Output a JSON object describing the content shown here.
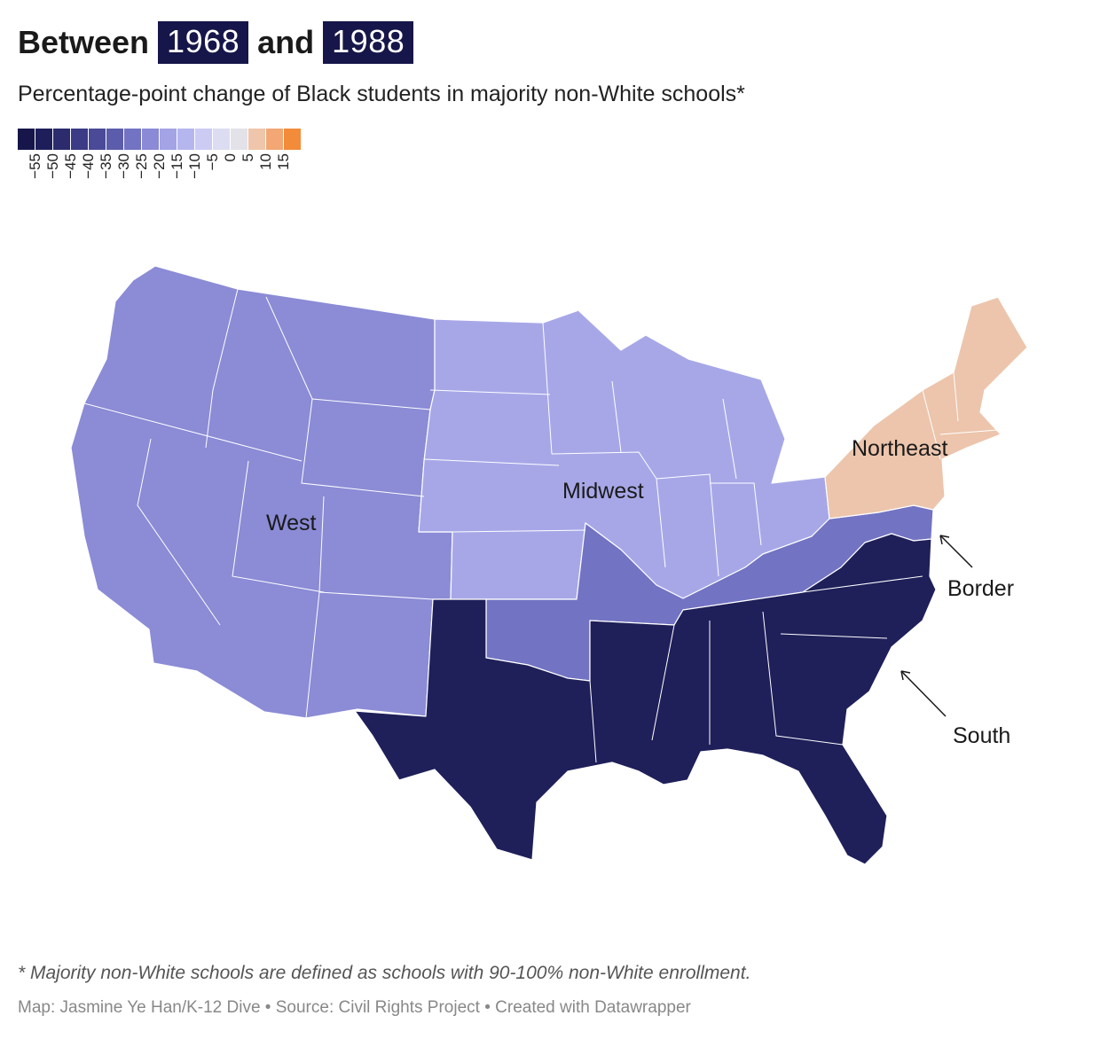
{
  "title": {
    "prefix": "Between",
    "year1": "1968",
    "middle": "and",
    "year2": "1988"
  },
  "subtitle": "Percentage-point change of Black students in majority non-White schools*",
  "legend": {
    "colors": [
      "#16164a",
      "#1e1e5a",
      "#2b2b6e",
      "#3b3b86",
      "#4a4a98",
      "#5c5cac",
      "#7373c4",
      "#8a8ad6",
      "#a3a3e6",
      "#b6b6ee",
      "#cbcbf4",
      "#dcdcf2",
      "#e2e2e8",
      "#efc5ab",
      "#f2a774",
      "#f28b3a"
    ],
    "ticks": [
      "−55",
      "−50",
      "−45",
      "−40",
      "−35",
      "−30",
      "−25",
      "−20",
      "−15",
      "−10",
      "−5",
      "0",
      "5",
      "10",
      "15"
    ]
  },
  "map": {
    "colors": {
      "south": "#1f1f5a",
      "border": "#7373c4",
      "west": "#8b8bd6",
      "midwest": "#a7a7e8",
      "northeast": "#ecc5ac"
    },
    "labels": {
      "west": "West",
      "midwest": "Midwest",
      "northeast": "Northeast",
      "border": "Border",
      "south": "South"
    }
  },
  "footnote": "* Majority non-White schools are defined as schools with 90-100% non-White enrollment.",
  "credits": "Map: Jasmine Ye Han/K-12 Dive • Source: Civil Rights Project • Created with Datawrapper"
}
